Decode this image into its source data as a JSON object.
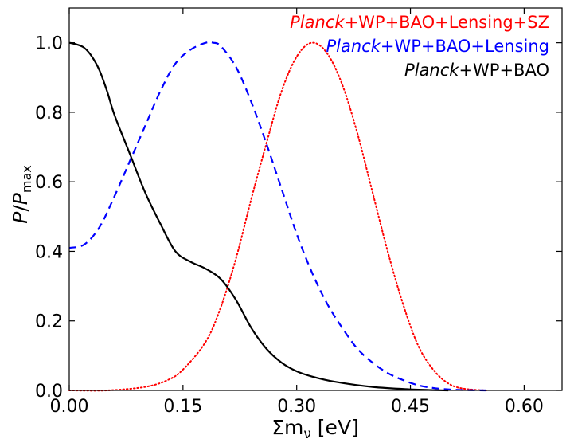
{
  "chart_data": {
    "type": "line",
    "title": "",
    "xlabel": {
      "prefix": "Σm",
      "subscript": "ν",
      "suffix": " [eV]"
    },
    "ylabel": {
      "main": "P",
      "sep": "/",
      "denom": "P",
      "denom_sub": "max"
    },
    "xlim": [
      0,
      0.65
    ],
    "ylim": [
      0,
      1.1
    ],
    "xticks": [
      0.0,
      0.15,
      0.3,
      0.45,
      0.6
    ],
    "xtick_labels": [
      "0.00",
      "0.15",
      "0.30",
      "0.45",
      "0.60"
    ],
    "yticks": [
      0.0,
      0.2,
      0.4,
      0.6,
      0.8,
      1.0
    ],
    "ytick_labels": [
      "0.0",
      "0.2",
      "0.4",
      "0.6",
      "0.8",
      "1.0"
    ],
    "grid": false,
    "legend_position": "top-right",
    "series": [
      {
        "name": "Planck+WP+BAO+Lensing+SZ",
        "name_italic_part": "Planck",
        "name_rest": "+WP+BAO+Lensing+SZ",
        "color": "#ff0000",
        "style": "dotted",
        "x": [
          0.0,
          0.05,
          0.1,
          0.13,
          0.15,
          0.18,
          0.2,
          0.22,
          0.24,
          0.26,
          0.28,
          0.3,
          0.32,
          0.34,
          0.36,
          0.38,
          0.4,
          0.42,
          0.44,
          0.46,
          0.48,
          0.5,
          0.52,
          0.55
        ],
        "y": [
          0.0,
          0.0,
          0.01,
          0.03,
          0.06,
          0.14,
          0.24,
          0.38,
          0.55,
          0.71,
          0.86,
          0.96,
          1.0,
          0.97,
          0.88,
          0.74,
          0.57,
          0.4,
          0.25,
          0.13,
          0.06,
          0.02,
          0.005,
          0.0
        ]
      },
      {
        "name": "Planck+WP+BAO+Lensing",
        "name_italic_part": "Planck",
        "name_rest": "+WP+BAO+Lensing",
        "color": "#0000ff",
        "style": "dashed",
        "x": [
          0.0,
          0.02,
          0.04,
          0.06,
          0.08,
          0.1,
          0.12,
          0.14,
          0.16,
          0.18,
          0.19,
          0.2,
          0.22,
          0.24,
          0.26,
          0.28,
          0.3,
          0.32,
          0.34,
          0.36,
          0.38,
          0.4,
          0.42,
          0.44,
          0.46,
          0.48,
          0.5,
          0.52,
          0.55
        ],
        "y": [
          0.41,
          0.42,
          0.47,
          0.56,
          0.66,
          0.76,
          0.86,
          0.94,
          0.98,
          1.0,
          1.0,
          0.99,
          0.93,
          0.83,
          0.71,
          0.58,
          0.45,
          0.34,
          0.25,
          0.18,
          0.12,
          0.08,
          0.05,
          0.03,
          0.015,
          0.007,
          0.003,
          0.001,
          0.0
        ]
      },
      {
        "name": "Planck+WP+BAO",
        "name_italic_part": "Planck",
        "name_rest": "+WP+BAO",
        "color": "#000000",
        "style": "solid",
        "x": [
          0.0,
          0.01,
          0.02,
          0.03,
          0.04,
          0.05,
          0.06,
          0.08,
          0.1,
          0.12,
          0.14,
          0.16,
          0.18,
          0.2,
          0.22,
          0.24,
          0.26,
          0.28,
          0.3,
          0.32,
          0.35,
          0.4,
          0.45,
          0.5
        ],
        "y": [
          1.0,
          0.995,
          0.985,
          0.96,
          0.92,
          0.86,
          0.79,
          0.68,
          0.57,
          0.48,
          0.4,
          0.37,
          0.35,
          0.32,
          0.26,
          0.18,
          0.12,
          0.08,
          0.055,
          0.04,
          0.025,
          0.01,
          0.003,
          0.0
        ]
      }
    ]
  }
}
